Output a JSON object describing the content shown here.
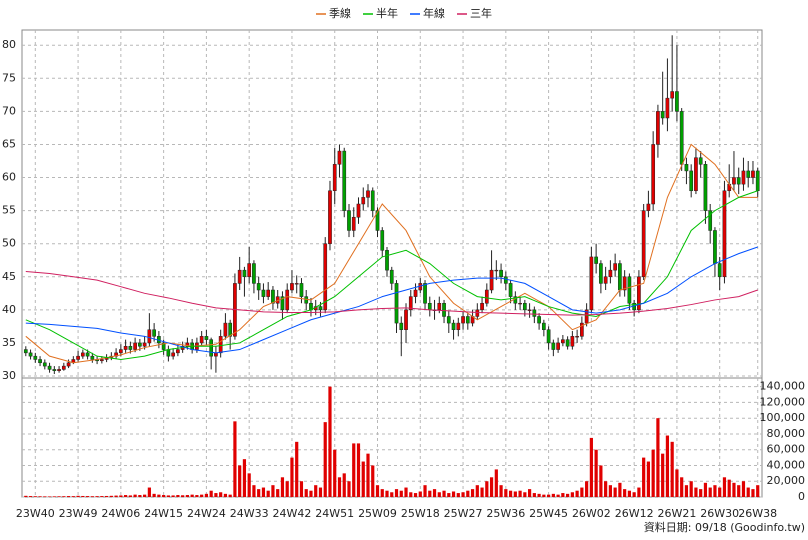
{
  "chart_data": {
    "type": "candlestick",
    "source": "資料日期: 09/18 (Goodinfo.tw)",
    "grid": true,
    "legend": "top",
    "up_color": "#e00000",
    "down_color": "#00a000",
    "volume_color": "#e00000",
    "xlim": [
      -0.8,
      154.9
    ],
    "xticks": [
      {
        "value": 2,
        "label": "23W40"
      },
      {
        "value": 11,
        "label": "23W49"
      },
      {
        "value": 20,
        "label": "24W06"
      },
      {
        "value": 29,
        "label": "24W15"
      },
      {
        "value": 38,
        "label": "24W24"
      },
      {
        "value": 47,
        "label": "24W33"
      },
      {
        "value": 56,
        "label": "24W42"
      },
      {
        "value": 65,
        "label": "24W51"
      },
      {
        "value": 74,
        "label": "25W09"
      },
      {
        "value": 83,
        "label": "25W18"
      },
      {
        "value": 92,
        "label": "25W27"
      },
      {
        "value": 101,
        "label": "25W36"
      },
      {
        "value": 110,
        "label": "25W45"
      },
      {
        "value": 119,
        "label": "26W02"
      },
      {
        "value": 128,
        "label": "26W12"
      },
      {
        "value": 137,
        "label": "26W21"
      },
      {
        "value": 146,
        "label": "26W30"
      },
      {
        "value": 154,
        "label": "26W38"
      }
    ],
    "ylim": [
      29.7,
      82.3
    ],
    "yticks": [
      30,
      35,
      40,
      45,
      50,
      55,
      60,
      65,
      70,
      75,
      80
    ],
    "y2lim": [
      0,
      151000
    ],
    "y2ticks": [
      0,
      {
        "value": 20000,
        "label": "20,000"
      },
      {
        "value": 40000,
        "label": "40,000"
      },
      {
        "value": 60000,
        "label": "60,000"
      },
      {
        "value": 80000,
        "label": "80,000"
      },
      {
        "value": 100000,
        "label": "100,000"
      },
      {
        "value": 120000,
        "label": "120,000"
      },
      {
        "value": 140000,
        "label": "140,000"
      }
    ],
    "open": [
      34,
      33.5,
      33,
      32.5,
      32,
      31.5,
      31,
      30.8,
      31,
      31.5,
      32,
      32.5,
      33,
      33.5,
      33,
      32.5,
      32.3,
      32.5,
      32.8,
      33,
      33.5,
      34,
      34.5,
      34,
      35,
      34.5,
      35,
      37,
      36,
      35,
      34,
      33,
      33.5,
      34,
      34.5,
      35,
      34,
      35,
      36,
      35.5,
      33,
      33.5,
      36,
      38,
      36,
      44,
      46,
      45,
      47,
      44,
      43,
      42,
      43,
      41,
      42,
      40,
      43,
      44,
      44,
      42,
      41,
      40,
      40.5,
      40,
      50,
      58,
      62,
      64,
      55,
      52,
      54,
      56,
      57,
      58,
      55,
      52,
      49,
      46,
      44,
      38,
      37,
      40,
      42,
      43,
      44,
      41,
      40,
      40,
      41,
      39,
      38,
      37,
      38,
      39,
      38,
      39,
      40,
      41,
      43,
      46,
      46,
      45,
      44,
      42,
      41,
      41,
      40,
      40,
      39,
      38,
      37,
      35,
      34,
      35,
      35.5,
      34.5,
      36,
      36,
      38,
      40,
      48,
      47,
      44,
      45,
      46,
      47,
      43,
      45,
      41,
      40,
      45,
      55,
      56,
      65,
      70,
      69,
      72,
      73,
      70,
      62,
      61,
      58,
      63,
      62,
      55,
      52,
      47,
      45,
      58,
      59,
      60,
      59,
      61,
      60,
      61
    ],
    "high": [
      34.5,
      34,
      33.5,
      33,
      32.5,
      32,
      31.5,
      31.5,
      32,
      32.5,
      33,
      33.8,
      34,
      34,
      33.5,
      33,
      33,
      33.3,
      33.6,
      34.2,
      34.8,
      35.5,
      35.2,
      35.8,
      35.6,
      36,
      39.5,
      38,
      36.8,
      35.5,
      34.6,
      34.2,
      34.8,
      35.2,
      35.8,
      35.6,
      35.8,
      36.8,
      37,
      35.8,
      34.5,
      37,
      39.5,
      38.5,
      45.5,
      48,
      46.5,
      49.5,
      47.5,
      45,
      44,
      44.2,
      43.6,
      43,
      42.8,
      44,
      46,
      45.2,
      44.8,
      43,
      41.8,
      41.5,
      41.2,
      51,
      59.5,
      64.5,
      65,
      64.5,
      56,
      55.5,
      57,
      58.5,
      59,
      58.5,
      55.5,
      52.5,
      49.5,
      46.5,
      44.5,
      39,
      41,
      43,
      44,
      44.8,
      44.5,
      42,
      41.5,
      42,
      41.5,
      39.8,
      38.5,
      38.8,
      39.8,
      39.5,
      40,
      41,
      42,
      44,
      49,
      47.5,
      47,
      45.8,
      44.5,
      42.8,
      42,
      41.5,
      41,
      40.5,
      39.5,
      38.5,
      37.5,
      35.5,
      35.8,
      36.2,
      36,
      36.8,
      37,
      39,
      41,
      49.5,
      50,
      47.5,
      46.5,
      47.5,
      48.5,
      47.5,
      46,
      45.5,
      41.5,
      46,
      56,
      58,
      67,
      71,
      76,
      78,
      81.5,
      80,
      70.5,
      63,
      62,
      64.5,
      64,
      62.5,
      56,
      52.5,
      48,
      59.5,
      62,
      64,
      61.5,
      63,
      62.5,
      62.5,
      61.5
    ],
    "low": [
      33,
      32.5,
      32,
      31.5,
      31,
      30.5,
      30.3,
      30.5,
      30.8,
      31.2,
      31.8,
      32.2,
      32.6,
      32.5,
      32,
      31.8,
      31.9,
      32.1,
      32.4,
      32.6,
      33,
      33.5,
      33.4,
      33.6,
      33.8,
      34,
      34.5,
      35.2,
      34.2,
      33.2,
      32.2,
      32.5,
      33,
      33.5,
      34,
      33.4,
      33.5,
      34.5,
      34.6,
      31,
      30.5,
      32.8,
      35.5,
      34,
      35.5,
      43,
      42,
      44,
      42.5,
      41.5,
      41,
      41.5,
      40,
      40.2,
      38.5,
      39.5,
      42.5,
      42.5,
      41,
      40,
      39,
      39.2,
      39,
      39.5,
      49,
      56,
      60,
      54,
      51,
      51,
      53,
      55,
      55.5,
      54,
      51,
      48,
      45,
      43,
      36.5,
      33,
      35,
      39,
      41,
      42.5,
      40,
      39,
      38.5,
      39.5,
      38,
      36.5,
      35.5,
      36,
      37,
      37,
      37.5,
      38.5,
      39.5,
      40.5,
      42.5,
      44.5,
      44,
      43,
      41,
      40,
      40,
      39,
      38.8,
      38,
      37,
      36,
      34,
      33,
      33.5,
      34.5,
      34,
      34,
      35,
      35.5,
      37.5,
      39.5,
      45.5,
      42.5,
      43,
      44,
      45,
      42,
      42,
      40,
      39,
      39.5,
      44.5,
      54,
      55,
      63,
      68,
      67,
      70,
      68.5,
      61,
      59,
      57,
      57.5,
      60,
      53,
      50,
      45,
      43,
      44,
      57,
      58,
      57.5,
      58,
      58.5,
      59,
      57
    ],
    "close": [
      33.5,
      33,
      32.5,
      32,
      31.5,
      31,
      30.8,
      31,
      31.5,
      32,
      32.5,
      33,
      33.5,
      33,
      32.5,
      32.3,
      32.5,
      32.8,
      33,
      33.5,
      34,
      34.5,
      34,
      35,
      34.5,
      35,
      37,
      36,
      35,
      34,
      33,
      33.5,
      34,
      34.5,
      35,
      34,
      35,
      36,
      35.5,
      33,
      33.5,
      36,
      38,
      36,
      44,
      46,
      45,
      47,
      44,
      43,
      42,
      43,
      41,
      42,
      40,
      43,
      44,
      44,
      42,
      41,
      40,
      40.5,
      40,
      50,
      58,
      62,
      64,
      55,
      52,
      54,
      56,
      57,
      58,
      55,
      52,
      49,
      46,
      44,
      38,
      37,
      40,
      42,
      43,
      44,
      41,
      40,
      40,
      41,
      39,
      38,
      37,
      38,
      39,
      38,
      39,
      40,
      41,
      43,
      46,
      46,
      45,
      44,
      42,
      41,
      41,
      40,
      40,
      39,
      38,
      37,
      35,
      34,
      35,
      35.5,
      34.5,
      36,
      36,
      38,
      40,
      48,
      47,
      44,
      45,
      46,
      47,
      43,
      45,
      41,
      40,
      45,
      55,
      56,
      65,
      70,
      69,
      72,
      73,
      70,
      62,
      61,
      58,
      63,
      62,
      55,
      52,
      47,
      45,
      58,
      59,
      60,
      59,
      61,
      60,
      61,
      58
    ],
    "volume": [
      1500,
      1200,
      1000,
      900,
      800,
      700,
      800,
      900,
      1000,
      1200,
      1100,
      1500,
      1300,
      1200,
      1000,
      1100,
      1200,
      1300,
      1500,
      1800,
      2000,
      2500,
      2000,
      3000,
      2500,
      3000,
      12000,
      4000,
      3000,
      2500,
      2000,
      2000,
      2500,
      2200,
      2500,
      3000,
      2500,
      3000,
      4000,
      8000,
      5000,
      6000,
      4000,
      3000,
      96000,
      40000,
      48000,
      30000,
      15000,
      10000,
      12000,
      8000,
      15000,
      10000,
      25000,
      20000,
      50000,
      70000,
      20000,
      10000,
      8000,
      15000,
      12000,
      95000,
      140000,
      60000,
      25000,
      30000,
      20000,
      68000,
      68000,
      45000,
      55000,
      40000,
      15000,
      10000,
      8000,
      6000,
      10000,
      8000,
      12000,
      6000,
      5000,
      7000,
      15000,
      8000,
      10000,
      6000,
      8000,
      5000,
      7000,
      5000,
      6000,
      8000,
      10000,
      15000,
      12000,
      20000,
      25000,
      35000,
      15000,
      10000,
      8000,
      7000,
      8000,
      6000,
      10000,
      5000,
      4000,
      3000,
      3000,
      4000,
      3000,
      5000,
      4000,
      6000,
      8000,
      12000,
      20000,
      75000,
      60000,
      40000,
      20000,
      15000,
      12000,
      18000,
      10000,
      8000,
      6000,
      12000,
      50000,
      45000,
      60000,
      100000,
      55000,
      78000,
      70000,
      35000,
      25000,
      15000,
      20000,
      12000,
      10000,
      18000,
      12000,
      15000,
      12000,
      25000,
      22000,
      18000,
      15000,
      20000,
      12000,
      10000,
      15000
    ],
    "series": [
      {
        "name": "季線",
        "color": "#e07020",
        "x": [
          0,
          5,
          10,
          15,
          20,
          25,
          30,
          35,
          40,
          45,
          50,
          55,
          60,
          65,
          70,
          75,
          80,
          85,
          90,
          95,
          100,
          105,
          110,
          115,
          120,
          125,
          130,
          135,
          140,
          145,
          150,
          154
        ],
        "values": [
          36,
          33,
          32,
          32.5,
          33.2,
          34.3,
          35,
          34.5,
          34.8,
          37,
          40.5,
          42,
          41.5,
          44,
          50,
          56,
          52,
          45,
          41,
          38.5,
          40.5,
          42.5,
          40.5,
          37,
          38.5,
          43,
          44,
          57,
          65,
          62,
          57,
          57
        ]
      },
      {
        "name": "半年",
        "color": "#00c000",
        "x": [
          0,
          5,
          10,
          15,
          20,
          25,
          30,
          35,
          40,
          45,
          50,
          55,
          60,
          65,
          70,
          75,
          80,
          85,
          90,
          95,
          100,
          105,
          110,
          115,
          120,
          125,
          130,
          135,
          140,
          145,
          150,
          154
        ],
        "values": [
          38.5,
          37,
          35,
          33,
          32.5,
          33,
          34,
          34.5,
          34.5,
          35,
          37,
          39,
          40,
          42,
          45,
          48,
          49,
          47,
          44,
          42,
          41.5,
          42,
          40.5,
          39.5,
          39,
          40.5,
          41,
          45,
          52,
          55,
          57,
          58
        ]
      },
      {
        "name": "年線",
        "color": "#0050ff",
        "x": [
          0,
          5,
          10,
          15,
          20,
          25,
          30,
          35,
          40,
          45,
          50,
          55,
          60,
          65,
          70,
          75,
          80,
          85,
          90,
          95,
          100,
          105,
          110,
          115,
          120,
          125,
          130,
          135,
          140,
          145,
          150,
          154
        ],
        "values": [
          38,
          37.8,
          37.5,
          37.2,
          36.5,
          36,
          35,
          34,
          33.5,
          34,
          35.5,
          37,
          38.5,
          39.5,
          40.5,
          42,
          43,
          44,
          44.5,
          44.8,
          44.8,
          44,
          42,
          40,
          39.5,
          40,
          41,
          42.5,
          45,
          47,
          48.5,
          49.5
        ]
      },
      {
        "name": "三年",
        "color": "#d02060",
        "x": [
          0,
          5,
          10,
          15,
          20,
          25,
          30,
          35,
          40,
          45,
          50,
          55,
          60,
          65,
          70,
          75,
          80,
          85,
          90,
          95,
          100,
          105,
          110,
          115,
          120,
          125,
          130,
          135,
          140,
          145,
          150,
          154
        ],
        "values": [
          45.8,
          45.5,
          45,
          44.5,
          43.5,
          42.5,
          41.8,
          41,
          40.3,
          40,
          39.7,
          39.6,
          39.6,
          39.7,
          40,
          40.2,
          40.3,
          40,
          39.8,
          39.6,
          39.5,
          39.4,
          39.3,
          39.2,
          39.3,
          39.5,
          39.8,
          40.2,
          40.8,
          41.5,
          42,
          43
        ]
      }
    ]
  }
}
